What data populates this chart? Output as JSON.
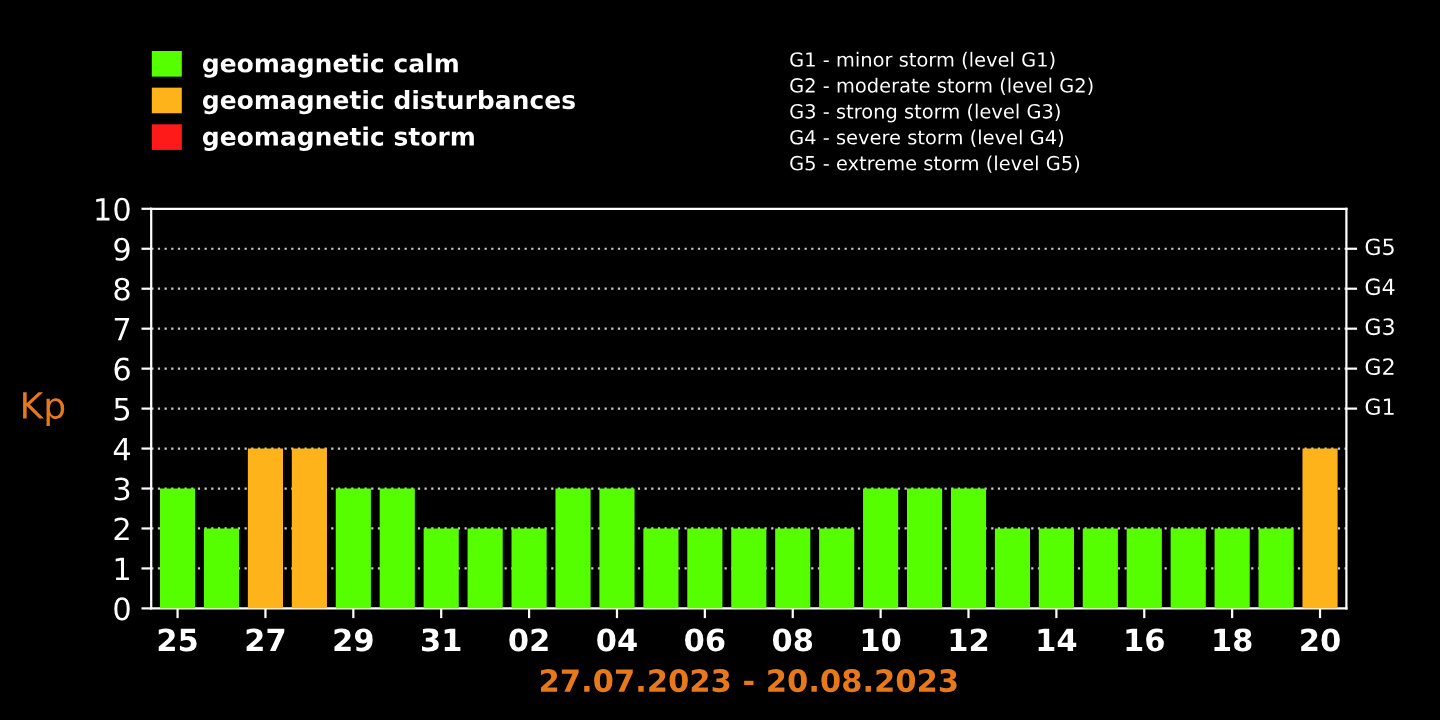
{
  "chart_data": {
    "type": "bar",
    "categories": [
      "25",
      null,
      "27",
      null,
      "29",
      null,
      "31",
      null,
      "02",
      null,
      "04",
      null,
      "06",
      null,
      "08",
      null,
      "10",
      null,
      "12",
      null,
      "14",
      null,
      "16",
      null,
      "18",
      null,
      "20"
    ],
    "series": [
      {
        "name": "geomagnetic calm",
        "color": "#55ff00",
        "values": [
          3,
          2,
          null,
          null,
          3,
          3,
          2,
          2,
          2,
          3,
          3,
          2,
          2,
          2,
          2,
          2,
          3,
          3,
          3,
          2,
          2,
          2,
          2,
          2,
          2,
          2,
          null
        ]
      },
      {
        "name": "geomagnetic disturbances",
        "color": "#ffb31a",
        "values": [
          null,
          null,
          4,
          4,
          null,
          null,
          null,
          null,
          null,
          null,
          null,
          null,
          null,
          null,
          null,
          null,
          null,
          null,
          null,
          null,
          null,
          null,
          null,
          null,
          null,
          null,
          4
        ]
      },
      {
        "name": "geomagnetic storm",
        "color": "#ff1a1a",
        "values": [
          null,
          null,
          null,
          null,
          null,
          null,
          null,
          null,
          null,
          null,
          null,
          null,
          null,
          null,
          null,
          null,
          null,
          null,
          null,
          null,
          null,
          null,
          null,
          null,
          null,
          null,
          null
        ]
      }
    ],
    "xlabel": "27.07.2023 - 20.08.2023",
    "ylabel": "Kp",
    "ylim": [
      0,
      10
    ],
    "yticks": [
      0,
      1,
      2,
      3,
      4,
      5,
      6,
      7,
      8,
      9,
      10
    ],
    "grid": "y",
    "legend": "top left",
    "annotations": [
      "G1 - minor storm (level G1)",
      "G2 - moderate storm (level G2)",
      "G3 - strong storm (level G3)",
      "G4 - severe storm (level G4)",
      "G5 - extreme storm (level G5)",
      "G1",
      "G2",
      "G3",
      "G4",
      "G5"
    ]
  }
}
